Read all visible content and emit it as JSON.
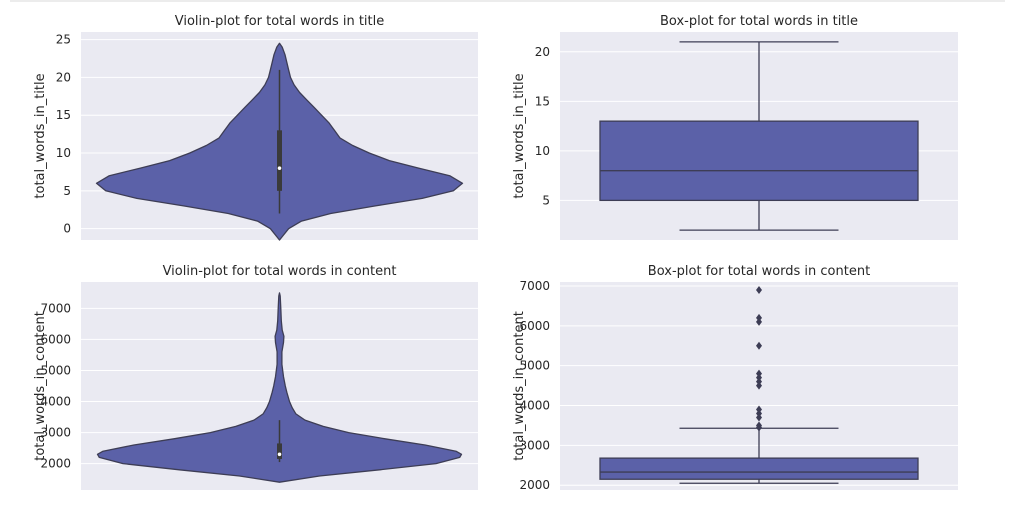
{
  "colors": {
    "panel_bg": "#eaeaf2",
    "grid": "#ffffff",
    "fill": "#5b61a8",
    "edge": "#3d3d55"
  },
  "chart_data": [
    {
      "type": "violin",
      "title": "Violin-plot for total words in title",
      "xlabel": "",
      "ylabel": "total_words_in_title",
      "ylim": [
        -1.5,
        26
      ],
      "yticks": [
        0,
        5,
        10,
        15,
        20,
        25
      ],
      "grid": true,
      "range": [
        -1.5,
        24.5
      ],
      "density_profile": [
        [
          -1.5,
          0.0
        ],
        [
          0,
          0.05
        ],
        [
          1,
          0.12
        ],
        [
          2,
          0.28
        ],
        [
          3,
          0.52
        ],
        [
          4,
          0.78
        ],
        [
          5,
          0.95
        ],
        [
          6,
          1.0
        ],
        [
          7,
          0.93
        ],
        [
          8,
          0.76
        ],
        [
          9,
          0.6
        ],
        [
          10,
          0.49
        ],
        [
          11,
          0.4
        ],
        [
          12,
          0.33
        ],
        [
          13,
          0.3
        ],
        [
          14,
          0.27
        ],
        [
          15,
          0.23
        ],
        [
          16,
          0.19
        ],
        [
          17,
          0.15
        ],
        [
          18,
          0.11
        ],
        [
          19,
          0.08
        ],
        [
          20,
          0.06
        ],
        [
          21,
          0.05
        ],
        [
          22,
          0.04
        ],
        [
          23,
          0.03
        ],
        [
          24,
          0.015
        ],
        [
          24.5,
          0.0
        ]
      ],
      "box": {
        "q1": 5,
        "median": 8,
        "q3": 13,
        "whisker_low": 2,
        "whisker_high": 21
      }
    },
    {
      "type": "box",
      "title": "Box-plot for total words in title",
      "xlabel": "",
      "ylabel": "total_words_in_title",
      "ylim": [
        1,
        22
      ],
      "yticks": [
        5,
        10,
        15,
        20
      ],
      "grid": true,
      "box": {
        "q1": 5,
        "median": 8,
        "q3": 13,
        "whisker_low": 2,
        "whisker_high": 21
      },
      "outliers": []
    },
    {
      "type": "violin",
      "title": "Violin-plot for total words in content",
      "xlabel": "",
      "ylabel": "total_words_in_content",
      "ylim": [
        1150,
        7850
      ],
      "yticks": [
        2000,
        3000,
        4000,
        5000,
        6000,
        7000
      ],
      "grid": true,
      "range": [
        1400,
        7500
      ],
      "density_profile": [
        [
          1400,
          0.0
        ],
        [
          1600,
          0.22
        ],
        [
          1800,
          0.55
        ],
        [
          2000,
          0.86
        ],
        [
          2200,
          0.99
        ],
        [
          2300,
          1.0
        ],
        [
          2400,
          0.97
        ],
        [
          2600,
          0.8
        ],
        [
          2800,
          0.58
        ],
        [
          3000,
          0.38
        ],
        [
          3200,
          0.24
        ],
        [
          3400,
          0.14
        ],
        [
          3600,
          0.09
        ],
        [
          3800,
          0.07
        ],
        [
          4000,
          0.055
        ],
        [
          4300,
          0.04
        ],
        [
          4500,
          0.032
        ],
        [
          4800,
          0.022
        ],
        [
          5200,
          0.013
        ],
        [
          5600,
          0.013
        ],
        [
          5900,
          0.022
        ],
        [
          6100,
          0.024
        ],
        [
          6300,
          0.015
        ],
        [
          6600,
          0.01
        ],
        [
          7000,
          0.007
        ],
        [
          7400,
          0.004
        ],
        [
          7500,
          0.0
        ]
      ],
      "box": {
        "q1": 2150,
        "median": 2300,
        "q3": 2650,
        "whisker_low": 2050,
        "whisker_high": 3400
      }
    },
    {
      "type": "box",
      "title": "Box-plot for total words in content",
      "xlabel": "",
      "ylabel": "total_words_in_content",
      "ylim": [
        1880,
        7100
      ],
      "yticks": [
        2000,
        3000,
        4000,
        5000,
        6000,
        7000
      ],
      "grid": true,
      "box": {
        "q1": 2150,
        "median": 2330,
        "q3": 2680,
        "whisker_low": 2050,
        "whisker_high": 3430
      },
      "outliers": [
        3450,
        3500,
        3700,
        3800,
        3900,
        4500,
        4600,
        4700,
        4800,
        5500,
        6100,
        6200,
        6900
      ]
    }
  ]
}
